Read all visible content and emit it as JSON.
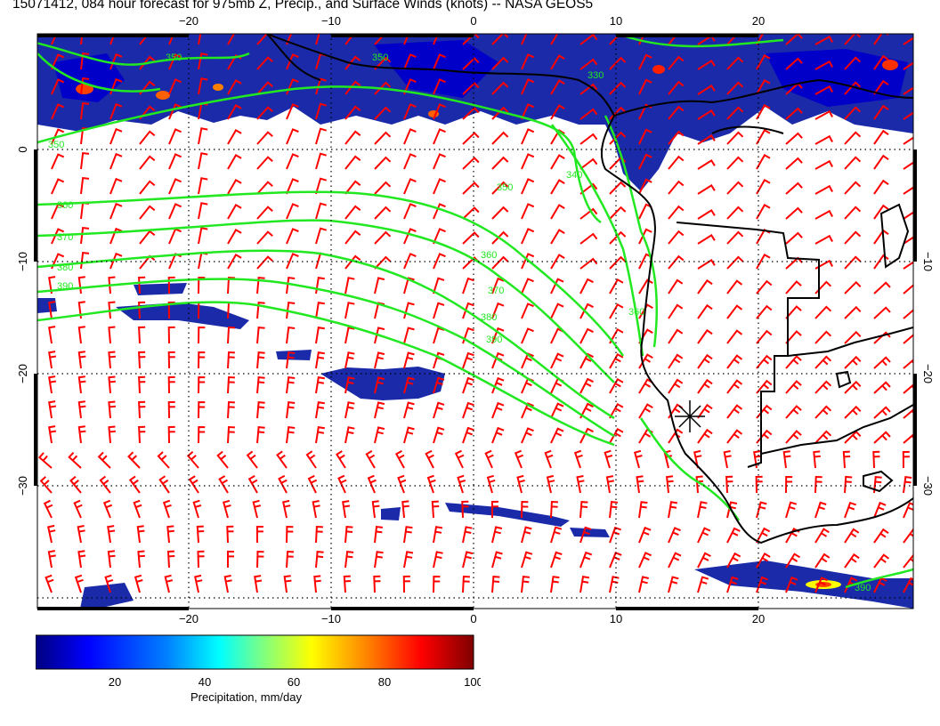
{
  "title": "15071412, 084 hour forecast for 975mb Z, Precip., and Surface Winds (knots) -- NASA GEOS5",
  "map": {
    "lon_range": [
      -30,
      30
    ],
    "lat_range": [
      -40,
      10
    ],
    "lon_ticks": [
      "−20",
      "−10",
      "0",
      "10",
      "20"
    ],
    "lat_ticks": [
      "0",
      "−10",
      "−20",
      "−30"
    ],
    "contours": {
      "color": "#22e822",
      "labels": [
        "350",
        "360",
        "370",
        "380",
        "390",
        "360",
        "370",
        "380",
        "390",
        "340",
        "350",
        "350",
        "350",
        "330",
        "360",
        "390"
      ]
    },
    "wind_barb_color": "#ff0000",
    "coastline_color": "#000000",
    "marker": "asterisk"
  },
  "colorbar": {
    "ticks": [
      "20",
      "40",
      "60",
      "80",
      "100"
    ],
    "label": "Precipitation, mm/day",
    "colors": [
      "#00007f",
      "#0000ff",
      "#0080ff",
      "#00ffff",
      "#80ff80",
      "#ffff00",
      "#ff8000",
      "#ff0000",
      "#7f0000"
    ]
  }
}
